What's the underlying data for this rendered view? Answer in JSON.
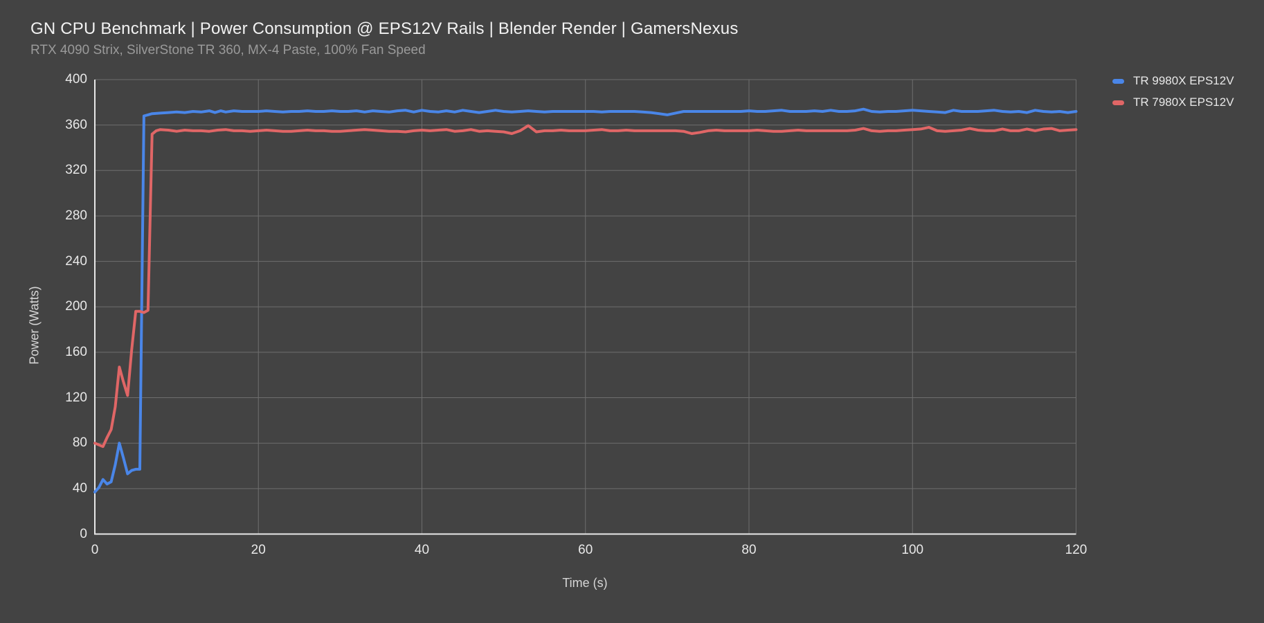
{
  "header": {
    "title": "GN CPU Benchmark | Power Consumption @ EPS12V Rails | Blender Render | GamersNexus",
    "subtitle": "RTX 4090 Strix, SilverStone TR 360, MX-4 Paste, 100% Fan Speed"
  },
  "colors": {
    "background": "#434343",
    "gridline": "#6e6e6e",
    "axis": "#e8e8e8",
    "title_text": "#f2f2f2",
    "subtitle_text": "#9a9a9a",
    "tick_text": "#e8e8e8",
    "series_blue": "#4a86e8",
    "series_red": "#e06666"
  },
  "chart_data": {
    "type": "line",
    "title": "GN CPU Benchmark | Power Consumption @ EPS12V Rails | Blender Render | GamersNexus",
    "subtitle": "RTX 4090 Strix, SilverStone TR 360, MX-4 Paste, 100% Fan Speed",
    "xlabel": "Time (s)",
    "ylabel": "Power (Watts)",
    "xlim": [
      0,
      120
    ],
    "ylim": [
      0,
      400
    ],
    "x_ticks": [
      0,
      20,
      40,
      60,
      80,
      100,
      120
    ],
    "y_ticks": [
      0,
      40,
      80,
      120,
      160,
      200,
      240,
      280,
      320,
      360,
      400
    ],
    "grid": true,
    "legend_position": "top-right",
    "series": [
      {
        "name": "TR 9980X EPS12V",
        "color": "#4a86e8",
        "points": [
          [
            0,
            37
          ],
          [
            0.5,
            41
          ],
          [
            1,
            48
          ],
          [
            1.5,
            44
          ],
          [
            2,
            46
          ],
          [
            2.5,
            61
          ],
          [
            3,
            80
          ],
          [
            3.5,
            67
          ],
          [
            4,
            53
          ],
          [
            4.5,
            56
          ],
          [
            5,
            57
          ],
          [
            5.5,
            57
          ],
          [
            6,
            368
          ],
          [
            6.5,
            369
          ],
          [
            7,
            370
          ],
          [
            8,
            370.5
          ],
          [
            9,
            371
          ],
          [
            10,
            371.5
          ],
          [
            11,
            371
          ],
          [
            12,
            372
          ],
          [
            13,
            371.5
          ],
          [
            14,
            372.5
          ],
          [
            14.7,
            371
          ],
          [
            15.4,
            372.5
          ],
          [
            16,
            371.5
          ],
          [
            17,
            372.5
          ],
          [
            18,
            372
          ],
          [
            19,
            372
          ],
          [
            20,
            372
          ],
          [
            21,
            372.5
          ],
          [
            22,
            372
          ],
          [
            23,
            371.5
          ],
          [
            24,
            372
          ],
          [
            25,
            372
          ],
          [
            26,
            372.5
          ],
          [
            27,
            372
          ],
          [
            28,
            372
          ],
          [
            29,
            372.5
          ],
          [
            30,
            372
          ],
          [
            31,
            372
          ],
          [
            32,
            372.5
          ],
          [
            33,
            371.5
          ],
          [
            34,
            372.5
          ],
          [
            35,
            372
          ],
          [
            36,
            371.5
          ],
          [
            37,
            372.5
          ],
          [
            38,
            373
          ],
          [
            39,
            371.5
          ],
          [
            40,
            373
          ],
          [
            41,
            372
          ],
          [
            42,
            371.5
          ],
          [
            43,
            372.5
          ],
          [
            44,
            371.5
          ],
          [
            45,
            373
          ],
          [
            46,
            372
          ],
          [
            47,
            371
          ],
          [
            48,
            372
          ],
          [
            49,
            373
          ],
          [
            50,
            372
          ],
          [
            51,
            371.5
          ],
          [
            52,
            372
          ],
          [
            53,
            372.5
          ],
          [
            54,
            372
          ],
          [
            55,
            371.5
          ],
          [
            56,
            372
          ],
          [
            57,
            372
          ],
          [
            58,
            372
          ],
          [
            59,
            372
          ],
          [
            60,
            372
          ],
          [
            61,
            372
          ],
          [
            62,
            371.5
          ],
          [
            63,
            372
          ],
          [
            64,
            372
          ],
          [
            65,
            372
          ],
          [
            66,
            372
          ],
          [
            67,
            371.5
          ],
          [
            68,
            371
          ],
          [
            69,
            370
          ],
          [
            70,
            369
          ],
          [
            71,
            370.5
          ],
          [
            72,
            372
          ],
          [
            73,
            372
          ],
          [
            74,
            372
          ],
          [
            75,
            372
          ],
          [
            76,
            372
          ],
          [
            77,
            372
          ],
          [
            78,
            372
          ],
          [
            79,
            372
          ],
          [
            80,
            372.5
          ],
          [
            81,
            372
          ],
          [
            82,
            372
          ],
          [
            83,
            372.5
          ],
          [
            84,
            373
          ],
          [
            85,
            372
          ],
          [
            86,
            372
          ],
          [
            87,
            372
          ],
          [
            88,
            372.5
          ],
          [
            89,
            372
          ],
          [
            90,
            373
          ],
          [
            91,
            372
          ],
          [
            92,
            372
          ],
          [
            93,
            372.5
          ],
          [
            94,
            374
          ],
          [
            95,
            372
          ],
          [
            96,
            371.5
          ],
          [
            97,
            372
          ],
          [
            98,
            372
          ],
          [
            99,
            372.5
          ],
          [
            100,
            373
          ],
          [
            101,
            372.5
          ],
          [
            102,
            372
          ],
          [
            103,
            371.5
          ],
          [
            104,
            371
          ],
          [
            105,
            373
          ],
          [
            106,
            372
          ],
          [
            107,
            372
          ],
          [
            108,
            372
          ],
          [
            109,
            372.5
          ],
          [
            110,
            373
          ],
          [
            111,
            372
          ],
          [
            112,
            371.5
          ],
          [
            113,
            372
          ],
          [
            114,
            371
          ],
          [
            115,
            373
          ],
          [
            116,
            372
          ],
          [
            117,
            371.5
          ],
          [
            118,
            372
          ],
          [
            119,
            371
          ],
          [
            120,
            372
          ]
        ]
      },
      {
        "name": "TR 7980X EPS12V",
        "color": "#e06666",
        "points": [
          [
            0,
            80
          ],
          [
            0.5,
            78.5
          ],
          [
            1,
            77
          ],
          [
            1.5,
            85
          ],
          [
            2,
            92
          ],
          [
            2.5,
            112
          ],
          [
            3,
            147
          ],
          [
            3.5,
            134
          ],
          [
            4,
            122
          ],
          [
            4.5,
            162
          ],
          [
            5,
            196
          ],
          [
            5.5,
            196
          ],
          [
            6,
            195
          ],
          [
            6.5,
            197
          ],
          [
            7,
            352
          ],
          [
            7.5,
            355
          ],
          [
            8,
            356
          ],
          [
            9,
            355.5
          ],
          [
            10,
            354.5
          ],
          [
            11,
            355.5
          ],
          [
            12,
            355
          ],
          [
            13,
            355
          ],
          [
            14,
            354.5
          ],
          [
            15,
            355.5
          ],
          [
            16,
            356
          ],
          [
            17,
            355
          ],
          [
            18,
            355
          ],
          [
            19,
            354.5
          ],
          [
            20,
            355
          ],
          [
            21,
            355.5
          ],
          [
            22,
            355
          ],
          [
            23,
            354.5
          ],
          [
            24,
            354.5
          ],
          [
            25,
            355
          ],
          [
            26,
            355.5
          ],
          [
            27,
            355
          ],
          [
            28,
            355
          ],
          [
            29,
            354.5
          ],
          [
            30,
            354.5
          ],
          [
            31,
            355
          ],
          [
            32,
            355.5
          ],
          [
            33,
            356
          ],
          [
            34,
            355.5
          ],
          [
            35,
            355
          ],
          [
            36,
            354.5
          ],
          [
            37,
            354.5
          ],
          [
            38,
            354
          ],
          [
            39,
            355
          ],
          [
            40,
            355.5
          ],
          [
            41,
            355
          ],
          [
            42,
            355.5
          ],
          [
            43,
            356
          ],
          [
            44,
            354.5
          ],
          [
            45,
            355
          ],
          [
            46,
            356
          ],
          [
            47,
            354.5
          ],
          [
            48,
            355
          ],
          [
            49,
            354.5
          ],
          [
            50,
            354
          ],
          [
            51,
            352.5
          ],
          [
            52,
            355
          ],
          [
            53,
            359.5
          ],
          [
            54,
            354
          ],
          [
            55,
            355
          ],
          [
            56,
            355
          ],
          [
            57,
            355.5
          ],
          [
            58,
            355
          ],
          [
            59,
            355
          ],
          [
            60,
            355
          ],
          [
            61,
            355.5
          ],
          [
            62,
            356
          ],
          [
            63,
            355
          ],
          [
            64,
            355
          ],
          [
            65,
            355.5
          ],
          [
            66,
            355
          ],
          [
            67,
            355
          ],
          [
            68,
            355
          ],
          [
            69,
            355
          ],
          [
            70,
            355
          ],
          [
            71,
            355
          ],
          [
            72,
            354.5
          ],
          [
            73,
            352.5
          ],
          [
            74,
            353.5
          ],
          [
            75,
            355
          ],
          [
            76,
            355.5
          ],
          [
            77,
            355
          ],
          [
            78,
            355
          ],
          [
            79,
            355
          ],
          [
            80,
            355
          ],
          [
            81,
            355.5
          ],
          [
            82,
            355
          ],
          [
            83,
            354.5
          ],
          [
            84,
            354.5
          ],
          [
            85,
            355
          ],
          [
            86,
            355.5
          ],
          [
            87,
            355
          ],
          [
            88,
            355
          ],
          [
            89,
            355
          ],
          [
            90,
            355
          ],
          [
            91,
            355
          ],
          [
            92,
            355
          ],
          [
            93,
            355.5
          ],
          [
            94,
            357
          ],
          [
            95,
            355
          ],
          [
            96,
            354.5
          ],
          [
            97,
            355
          ],
          [
            98,
            355
          ],
          [
            99,
            355.5
          ],
          [
            100,
            356
          ],
          [
            101,
            356.5
          ],
          [
            102,
            358
          ],
          [
            103,
            355
          ],
          [
            104,
            354.5
          ],
          [
            105,
            355
          ],
          [
            106,
            355.5
          ],
          [
            107,
            357
          ],
          [
            108,
            355.5
          ],
          [
            109,
            355
          ],
          [
            110,
            355
          ],
          [
            111,
            356.5
          ],
          [
            112,
            355
          ],
          [
            113,
            355
          ],
          [
            114,
            356.5
          ],
          [
            115,
            355
          ],
          [
            116,
            356.5
          ],
          [
            117,
            357
          ],
          [
            118,
            355
          ],
          [
            119,
            355.5
          ],
          [
            120,
            356
          ]
        ]
      }
    ]
  }
}
